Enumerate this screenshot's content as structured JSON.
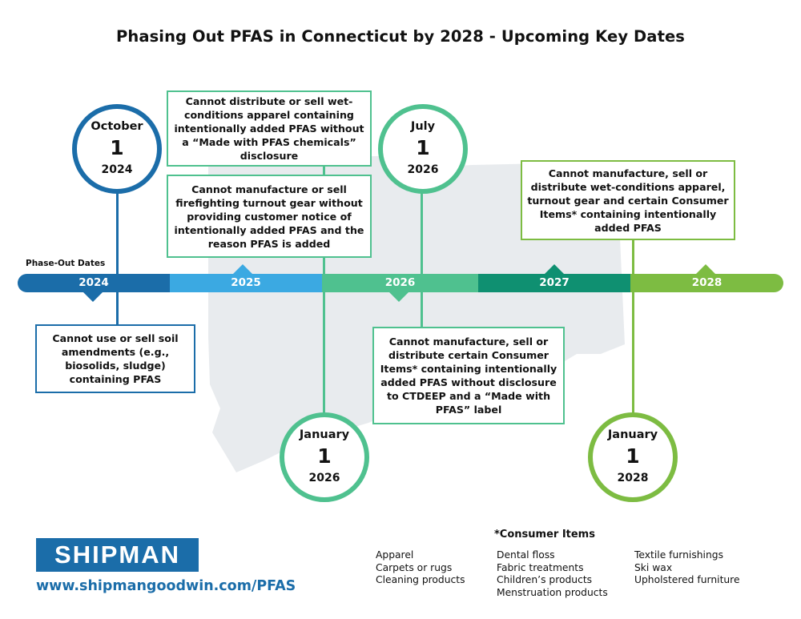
{
  "title": "Phasing Out PFAS in Connecticut by 2028 - Upcoming Key Dates",
  "phase_label": "Phase-Out Dates",
  "colors": {
    "navy": "#1b6da9",
    "sky": "#3ba9e2",
    "mint": "#4fc18f",
    "teal": "#0f9071",
    "lime": "#7dbc42",
    "map": "#e8ebee"
  },
  "timeline": {
    "years": [
      "2024",
      "2025",
      "2026",
      "2027",
      "2028"
    ]
  },
  "dates": {
    "oct2024": {
      "month": "October",
      "day": "1",
      "year": "2024"
    },
    "jan2026": {
      "month": "January",
      "day": "1",
      "year": "2026"
    },
    "jul2026": {
      "month": "July",
      "day": "1",
      "year": "2026"
    },
    "jan2028": {
      "month": "January",
      "day": "1",
      "year": "2028"
    }
  },
  "boxes": {
    "soil": "Cannot use or sell soil amendments (e.g., biosolids, sludge) containing PFAS",
    "wet_apparel_2026": "Cannot distribute or sell wet-conditions apparel containing intentionally added PFAS without a “Made with PFAS chemicals” disclosure",
    "turnout_gear": "Cannot manufacture or sell firefighting turnout gear without providing customer notice of intentionally added PFAS and the reason PFAS is added",
    "consumer_2026": "Cannot manufacture, sell or distribute certain Consumer Items* containing intentionally added PFAS without disclosure to CTDEEP and a “Made with PFAS” label",
    "ban_2028": "Cannot manufacture, sell or distribute wet-conditions apparel, turnout gear and certain Consumer Items* containing intentionally added PFAS"
  },
  "brand": {
    "logo_text": "SHIPMAN",
    "url": "www.shipmangoodwin.com/PFAS"
  },
  "consumer_items": {
    "title": "*Consumer Items",
    "col1": [
      "Apparel",
      "Carpets or rugs",
      "Cleaning products"
    ],
    "col2": [
      "Dental floss",
      "Fabric treatments",
      "Children’s products",
      "Menstruation products"
    ],
    "col3": [
      "Textile furnishings",
      "Ski wax",
      "Upholstered furniture"
    ]
  }
}
